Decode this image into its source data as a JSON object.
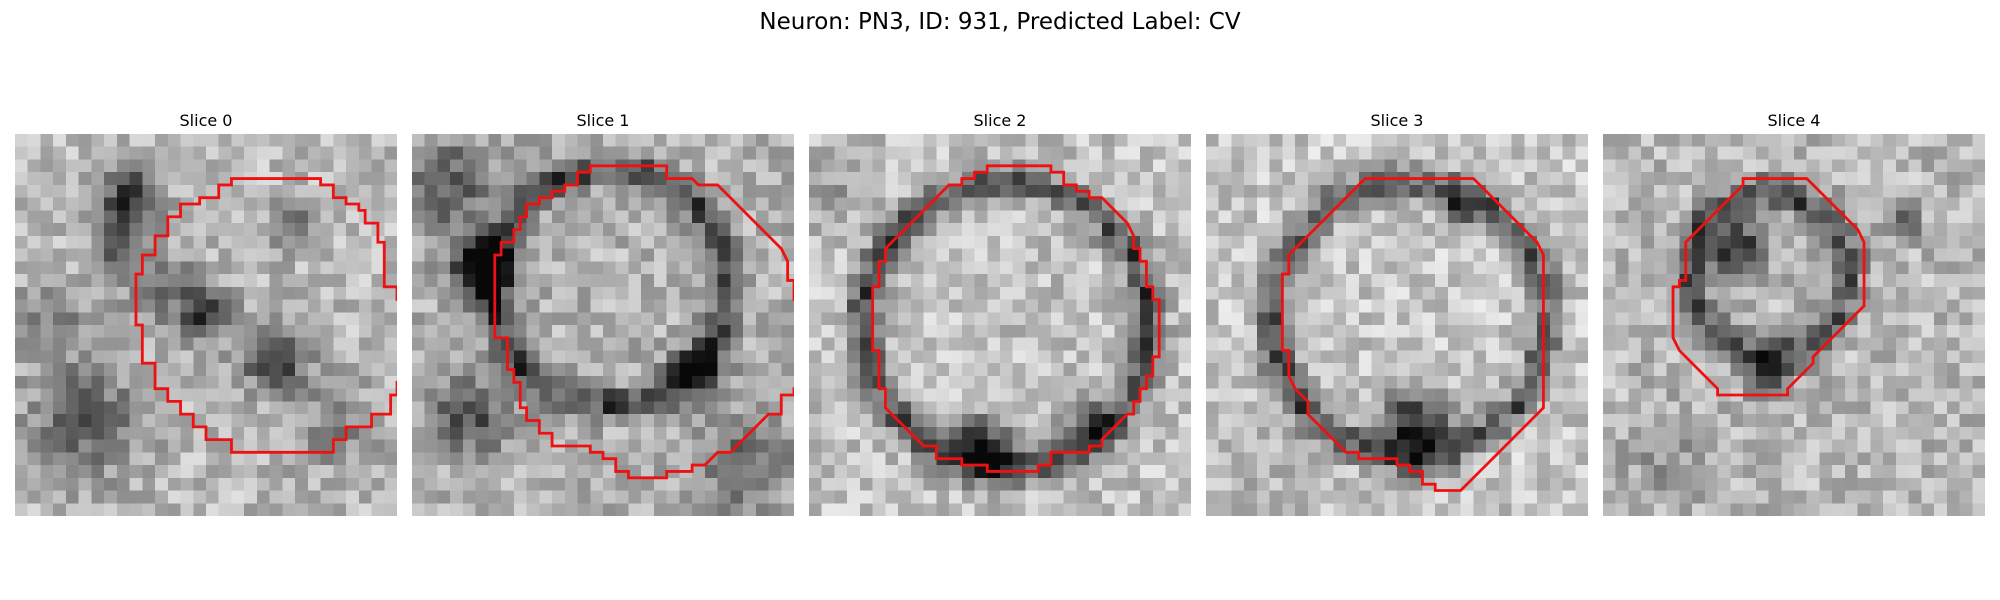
{
  "figure": {
    "title": "Neuron: PN3, ID: 931, Predicted Label: CV"
  },
  "contour_color": "#ee1111",
  "panels": [
    {
      "title": "Slice 0",
      "contour": [
        [
          17,
          3.5
        ],
        [
          24,
          3.5
        ],
        [
          24,
          4
        ],
        [
          25,
          4
        ],
        [
          25,
          5
        ],
        [
          26,
          5
        ],
        [
          26,
          5.5
        ],
        [
          27,
          5.5
        ],
        [
          27,
          6
        ],
        [
          27.5,
          6
        ],
        [
          27.5,
          7
        ],
        [
          28.5,
          7
        ],
        [
          28.5,
          8.5
        ],
        [
          29,
          8.5
        ],
        [
          29,
          12
        ],
        [
          30,
          12
        ],
        [
          30,
          13
        ],
        [
          30.5,
          13
        ],
        [
          30.5,
          19.5
        ],
        [
          30,
          19.5
        ],
        [
          30,
          20.5
        ],
        [
          29.5,
          20.5
        ],
        [
          29.5,
          22
        ],
        [
          28,
          22
        ],
        [
          28,
          23
        ],
        [
          26,
          23
        ],
        [
          26,
          24
        ],
        [
          25,
          24
        ],
        [
          25,
          25
        ],
        [
          17,
          25
        ],
        [
          17,
          24
        ],
        [
          15,
          24
        ],
        [
          15,
          23
        ],
        [
          14,
          23
        ],
        [
          14,
          22
        ],
        [
          13,
          22
        ],
        [
          13,
          21
        ],
        [
          12,
          21
        ],
        [
          12,
          20
        ],
        [
          11,
          20
        ],
        [
          11,
          18
        ],
        [
          10,
          18
        ],
        [
          10,
          15
        ],
        [
          9.5,
          15
        ],
        [
          9.5,
          11
        ],
        [
          10,
          11
        ],
        [
          10,
          9.5
        ],
        [
          11,
          9.5
        ],
        [
          11,
          8
        ],
        [
          12,
          8
        ],
        [
          12,
          6.5
        ],
        [
          13,
          6.5
        ],
        [
          13,
          5.5
        ],
        [
          14.5,
          5.5
        ],
        [
          14.5,
          5
        ],
        [
          16,
          5
        ],
        [
          16,
          4
        ],
        [
          17,
          4
        ]
      ]
    },
    {
      "title": "Slice 1",
      "contour": [
        [
          14,
          2.5
        ],
        [
          20,
          2.5
        ],
        [
          20,
          3.5
        ],
        [
          22,
          3.5
        ],
        [
          22.5,
          4
        ],
        [
          24,
          4
        ],
        [
          25,
          5
        ],
        [
          26,
          6
        ],
        [
          27,
          7
        ],
        [
          28,
          8
        ],
        [
          29,
          9
        ],
        [
          29.5,
          10
        ],
        [
          29.5,
          11.5
        ],
        [
          30,
          11.5
        ],
        [
          30,
          13
        ],
        [
          30.5,
          13
        ],
        [
          30.5,
          15.5
        ],
        [
          31,
          15.5
        ],
        [
          31,
          18
        ],
        [
          30.5,
          18
        ],
        [
          30.5,
          20
        ],
        [
          30,
          20
        ],
        [
          30,
          20.5
        ],
        [
          29,
          20.5
        ],
        [
          29,
          22
        ],
        [
          28,
          22
        ],
        [
          27,
          23
        ],
        [
          26,
          24
        ],
        [
          25,
          25
        ],
        [
          24,
          25
        ],
        [
          23,
          26
        ],
        [
          22,
          26
        ],
        [
          22,
          26.5
        ],
        [
          20,
          26.5
        ],
        [
          20,
          27
        ],
        [
          17,
          27
        ],
        [
          17,
          26.5
        ],
        [
          16,
          26.5
        ],
        [
          16,
          25.5
        ],
        [
          15,
          25.5
        ],
        [
          15,
          25
        ],
        [
          14,
          25
        ],
        [
          14,
          24.5
        ],
        [
          11,
          24.5
        ],
        [
          11,
          23.5
        ],
        [
          10,
          23.5
        ],
        [
          10,
          22.5
        ],
        [
          9,
          22.5
        ],
        [
          9,
          21.5
        ],
        [
          8.5,
          21.5
        ],
        [
          8.5,
          19.5
        ],
        [
          8,
          19.5
        ],
        [
          8,
          18.5
        ],
        [
          7.5,
          18.5
        ],
        [
          7.5,
          16
        ],
        [
          6.5,
          16
        ],
        [
          6.5,
          9.5
        ],
        [
          7,
          9.5
        ],
        [
          7,
          8.5
        ],
        [
          8,
          8.5
        ],
        [
          8,
          7.5
        ],
        [
          8.5,
          7.5
        ],
        [
          8.5,
          6.5
        ],
        [
          9,
          6.5
        ],
        [
          9,
          5.5
        ],
        [
          10,
          5.5
        ],
        [
          10,
          5
        ],
        [
          11,
          5
        ],
        [
          11,
          4.5
        ],
        [
          12,
          4.5
        ],
        [
          12,
          4
        ],
        [
          13,
          4
        ],
        [
          13,
          3
        ],
        [
          14,
          3
        ]
      ]
    },
    {
      "title": "Slice 2",
      "contour": [
        [
          14,
          2.5
        ],
        [
          19,
          2.5
        ],
        [
          19,
          3
        ],
        [
          20,
          3
        ],
        [
          20,
          4
        ],
        [
          21,
          4
        ],
        [
          21,
          4.5
        ],
        [
          22,
          4.5
        ],
        [
          22,
          5
        ],
        [
          23,
          5
        ],
        [
          24,
          6
        ],
        [
          25,
          7
        ],
        [
          25.5,
          8
        ],
        [
          25.5,
          9
        ],
        [
          26,
          9
        ],
        [
          26,
          10
        ],
        [
          26.5,
          10
        ],
        [
          26.5,
          12
        ],
        [
          27,
          12
        ],
        [
          27,
          13
        ],
        [
          27.5,
          13
        ],
        [
          27.5,
          17.5
        ],
        [
          27,
          17.5
        ],
        [
          27,
          19
        ],
        [
          26.5,
          19
        ],
        [
          26.5,
          20
        ],
        [
          26,
          20
        ],
        [
          26,
          21
        ],
        [
          25.5,
          21
        ],
        [
          25.5,
          22
        ],
        [
          25,
          22
        ],
        [
          24,
          23
        ],
        [
          23,
          24
        ],
        [
          23,
          24.5
        ],
        [
          22,
          24.5
        ],
        [
          22,
          25
        ],
        [
          19,
          25
        ],
        [
          19,
          26
        ],
        [
          18,
          26
        ],
        [
          18,
          26.5
        ],
        [
          14,
          26.5
        ],
        [
          14,
          26
        ],
        [
          12,
          26
        ],
        [
          12,
          25.5
        ],
        [
          10,
          25.5
        ],
        [
          10,
          24.5
        ],
        [
          9,
          24.5
        ],
        [
          8,
          23.5
        ],
        [
          7,
          22.5
        ],
        [
          6,
          21.5
        ],
        [
          6,
          20
        ],
        [
          5.5,
          20
        ],
        [
          5.5,
          17
        ],
        [
          5,
          17
        ],
        [
          5,
          12
        ],
        [
          5.5,
          12
        ],
        [
          5.5,
          10
        ],
        [
          6,
          10
        ],
        [
          6,
          9
        ],
        [
          7,
          8
        ],
        [
          8,
          7
        ],
        [
          9,
          6
        ],
        [
          10,
          5
        ],
        [
          11,
          4
        ],
        [
          12,
          4
        ],
        [
          12,
          3.5
        ],
        [
          13,
          3.5
        ],
        [
          13,
          3
        ],
        [
          14,
          3
        ]
      ]
    },
    {
      "title": "Slice 3",
      "contour": [
        [
          13,
          3.5
        ],
        [
          21,
          3.5
        ],
        [
          22,
          4.5
        ],
        [
          23,
          5.5
        ],
        [
          24,
          6.5
        ],
        [
          25,
          7.5
        ],
        [
          26,
          8.5
        ],
        [
          26.5,
          9.5
        ],
        [
          26.5,
          21.5
        ],
        [
          25,
          23
        ],
        [
          24,
          24
        ],
        [
          23,
          25
        ],
        [
          22,
          26
        ],
        [
          21,
          27
        ],
        [
          20,
          28
        ],
        [
          18,
          28
        ],
        [
          18,
          27.5
        ],
        [
          17,
          27.5
        ],
        [
          17,
          26.5
        ],
        [
          16,
          26.5
        ],
        [
          16,
          26
        ],
        [
          15,
          26
        ],
        [
          15,
          25.5
        ],
        [
          12,
          25.5
        ],
        [
          12,
          25
        ],
        [
          11,
          25
        ],
        [
          10,
          24
        ],
        [
          9,
          23
        ],
        [
          8,
          22
        ],
        [
          8,
          21
        ],
        [
          7,
          20
        ],
        [
          6.5,
          19
        ],
        [
          6.5,
          17
        ],
        [
          6,
          17
        ],
        [
          6,
          11
        ],
        [
          6.5,
          11
        ],
        [
          6.5,
          9.5
        ],
        [
          7.5,
          8.5
        ],
        [
          8.5,
          7.5
        ],
        [
          9.5,
          6.5
        ],
        [
          10.5,
          5.5
        ],
        [
          11.5,
          4.5
        ],
        [
          12.5,
          3.5
        ]
      ]
    },
    {
      "title": "Slice 4",
      "contour": [
        [
          11,
          3.5
        ],
        [
          16,
          3.5
        ],
        [
          17,
          4.5
        ],
        [
          18,
          5.5
        ],
        [
          19,
          6.5
        ],
        [
          20,
          7.5
        ],
        [
          20.5,
          8.5
        ],
        [
          20.5,
          13.5
        ],
        [
          19.5,
          14.5
        ],
        [
          18.5,
          15.5
        ],
        [
          17.5,
          16.5
        ],
        [
          16.5,
          17.5
        ],
        [
          16.5,
          18
        ],
        [
          15.5,
          19
        ],
        [
          14.5,
          20
        ],
        [
          14.5,
          20.5
        ],
        [
          9,
          20.5
        ],
        [
          9,
          20
        ],
        [
          8,
          19
        ],
        [
          7,
          18
        ],
        [
          6,
          17
        ],
        [
          5.5,
          16
        ],
        [
          5.5,
          12
        ],
        [
          6,
          12
        ],
        [
          6,
          11.5
        ],
        [
          6.5,
          11.5
        ],
        [
          6.5,
          8.5
        ],
        [
          7.5,
          7.5
        ],
        [
          8.5,
          6.5
        ],
        [
          9.5,
          5.5
        ],
        [
          10.5,
          4.5
        ],
        [
          11,
          4
        ]
      ]
    }
  ]
}
